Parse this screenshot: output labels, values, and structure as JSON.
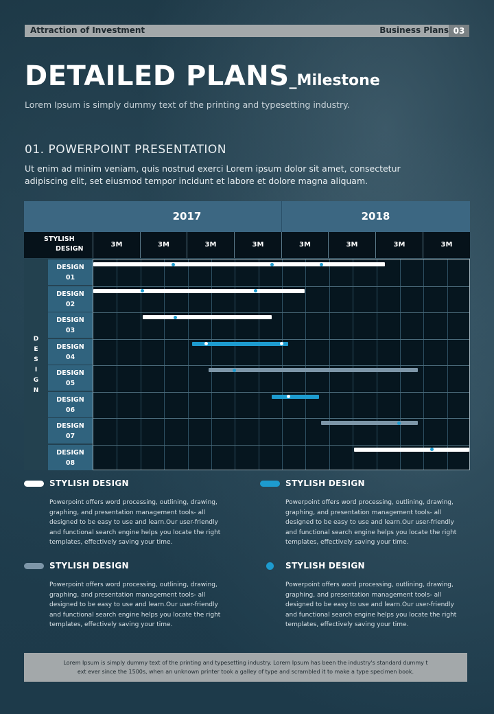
{
  "header": {
    "left": "Attraction  of Investment",
    "right": "Business  Plans",
    "page_number": "03"
  },
  "title": {
    "main": "DETAILED PLANS",
    "suffix": "_Milestone",
    "subtitle": "Lorem Ipsum is simply dummy text of the printing and typesetting industry."
  },
  "section": {
    "title": "01.  POWERPOINT  PRESENTATION",
    "body_line1": "Ut enim ad minim veniam, quis nostrud exerci  Lorem ipsum dolor sit amet, consectetur",
    "body_line2": "adipiscing elit,  set eiusmod tempor incidunt et labore et  dolore magna aliquam."
  },
  "gantt": {
    "years": [
      "2017",
      "2018"
    ],
    "header_label_line1": "STYLISH",
    "header_label_line2": "DESIGN",
    "periods": [
      "3M",
      "3M",
      "3M",
      "3M",
      "3M",
      "3M",
      "3M",
      "3M"
    ],
    "side_label": [
      "D",
      "E",
      "S",
      "I",
      "G",
      "N"
    ],
    "rows": [
      {
        "label1": "DESIGN",
        "label2": "01"
      },
      {
        "label1": "DESIGN",
        "label2": "02"
      },
      {
        "label1": "DESIGN",
        "label2": "03"
      },
      {
        "label1": "DESIGN",
        "label2": "04"
      },
      {
        "label1": "DESIGN",
        "label2": "05"
      },
      {
        "label1": "DESIGN",
        "label2": "06"
      },
      {
        "label1": "DESIGN",
        "label2": "07"
      },
      {
        "label1": "DESIGN",
        "label2": "08"
      }
    ],
    "colors": {
      "white": "#ffffff",
      "blue": "#1d9bcf",
      "gray": "#7d96a8",
      "dot": "#1d9bcf"
    }
  },
  "chart_data": {
    "type": "gantt",
    "years": [
      "2017",
      "2018"
    ],
    "periods": [
      "3M",
      "3M",
      "3M",
      "3M",
      "3M",
      "3M",
      "3M",
      "3M"
    ],
    "tasks": [
      {
        "name": "DESIGN 01",
        "style": "white",
        "start": 0.0,
        "end": 6.2,
        "milestones": [
          1.7,
          3.8,
          4.85
        ]
      },
      {
        "name": "DESIGN 02",
        "style": "white",
        "start": 0.0,
        "end": 4.5,
        "milestones": [
          1.05,
          3.45
        ]
      },
      {
        "name": "DESIGN 03",
        "style": "white",
        "start": 1.05,
        "end": 3.8,
        "milestones": [
          1.75
        ]
      },
      {
        "name": "DESIGN 04",
        "style": "blue",
        "start": 2.1,
        "end": 4.15,
        "milestones": [
          2.4,
          4.0
        ]
      },
      {
        "name": "DESIGN 05",
        "style": "gray",
        "start": 2.45,
        "end": 6.9,
        "milestones": [
          3.0
        ]
      },
      {
        "name": "DESIGN 06",
        "style": "blue",
        "start": 3.8,
        "end": 4.8,
        "milestones": [
          4.15
        ]
      },
      {
        "name": "DESIGN 07",
        "style": "gray",
        "start": 4.85,
        "end": 6.9,
        "milestones": [
          6.5
        ]
      },
      {
        "name": "DESIGN 08",
        "style": "white",
        "start": 5.55,
        "end": 8.0,
        "milestones": [
          7.2
        ]
      }
    ],
    "xlim": [
      0,
      8
    ]
  },
  "legend": [
    {
      "title": "STYLISH DESIGN",
      "swatch": "white-bar",
      "color": "#ffffff",
      "body": [
        "Powerpoint offers word processing, outlining, drawing,",
        "graphing, and presentation management tools- all",
        "designed to be easy to use and learn.Our user-friendly",
        "and functional search engine helps you locate the right",
        "templates, effectively saving your time."
      ]
    },
    {
      "title": "STYLISH DESIGN",
      "swatch": "blue-bar",
      "color": "#1d9bcf",
      "body": [
        "Powerpoint offers word processing, outlining, drawing,",
        "graphing, and presentation management tools- all",
        "designed to be easy to use and learn.Our user-friendly",
        "and functional search engine helps you locate the right",
        "templates, effectively saving your time."
      ]
    },
    {
      "title": "STYLISH DESIGN",
      "swatch": "gray-bar",
      "color": "#7d96a8",
      "body": [
        "Powerpoint offers word processing, outlining, drawing,",
        "graphing, and presentation management tools- all",
        "designed to be easy to use and learn.Our user-friendly",
        "and functional search engine helps you locate the right",
        "templates, effectively saving your time."
      ]
    },
    {
      "title": "STYLISH DESIGN",
      "swatch": "dot",
      "color": "#1d9bcf",
      "body": [
        "Powerpoint offers word processing, outlining, drawing,",
        "graphing, and presentation management tools- all",
        "designed to be easy to use and learn.Our user-friendly",
        "and functional search engine helps you locate the right",
        "templates, effectively saving your time."
      ]
    }
  ],
  "footer": {
    "line1": "Lorem Ipsum is simply dummy text of the printing and typesetting industry. Lorem Ipsum has been the industry's standard dummy t",
    "line2": "ext ever since the 1500s, when an unknown printer took a galley of type and scrambled it to make a type specimen book."
  }
}
